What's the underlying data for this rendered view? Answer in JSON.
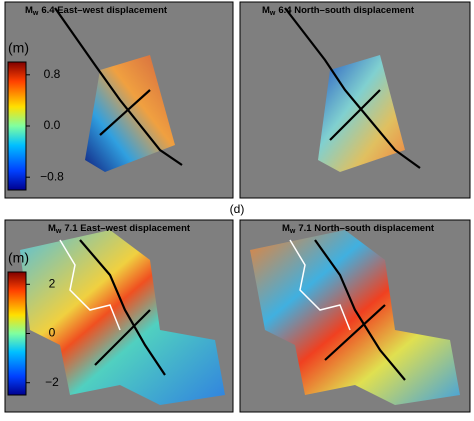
{
  "figure_label": "(d)",
  "panels": [
    {
      "title_symbol": "M",
      "title_subscript": "w",
      "title_text": "6.4 East–west displacement"
    },
    {
      "title_symbol": "M",
      "title_subscript": "w",
      "title_text": "6.4 North–south displacement"
    },
    {
      "title_symbol": "M",
      "title_subscript": "w",
      "title_text": "7.1 East–west displacement"
    },
    {
      "title_symbol": "M",
      "title_subscript": "w",
      "title_text": "7.1 North–south displacement"
    }
  ],
  "colorbars": [
    {
      "unit": "(m)",
      "lim": [
        -1,
        1
      ],
      "ticks": [
        {
          "value": 0.8,
          "label": "0.8"
        },
        {
          "value": 0,
          "label": "0.0"
        },
        {
          "value": -0.8,
          "label": "−0.8"
        }
      ]
    },
    {
      "unit": "(m)",
      "lim": [
        -2.5,
        2.5
      ],
      "ticks": [
        2,
        0,
        {
          "value": -2,
          "label": "−2"
        }
      ]
    }
  ]
}
